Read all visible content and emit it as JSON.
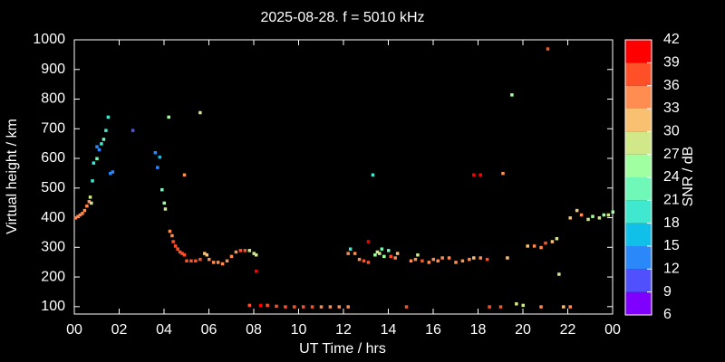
{
  "chart_data": {
    "type": "scatter",
    "title": "2025-08-28. f = 5010 kHz",
    "x_label": "UT Time / hrs",
    "y_label": "Virtual height / km",
    "xlim": [
      0,
      24
    ],
    "xticks": [
      {
        "value": 0,
        "label": "00"
      },
      {
        "value": 2,
        "label": "02"
      },
      {
        "value": 4,
        "label": "04"
      },
      {
        "value": 6,
        "label": "06"
      },
      {
        "value": 8,
        "label": "08"
      },
      10,
      12,
      14,
      16,
      18,
      20,
      22,
      {
        "value": 24,
        "label": "00"
      }
    ],
    "ylim": [
      75,
      1000
    ],
    "yticks": [
      100,
      200,
      300,
      400,
      500,
      600,
      700,
      800,
      900,
      1000
    ],
    "colorbar": {
      "label": "SNR / dB",
      "lim": [
        6,
        42
      ],
      "ticks": [
        6,
        9,
        12,
        15,
        18,
        21,
        24,
        27,
        30,
        33,
        36,
        39,
        42
      ],
      "colors": [
        "#8000ff",
        "#5050ff",
        "#2a88f8",
        "#10c0e8",
        "#40e8d0",
        "#70f8b8",
        "#a0ffa0",
        "#d0e888",
        "#f8c070",
        "#ff8c50",
        "#ff5028",
        "#ff0000"
      ]
    },
    "x": [
      0.05,
      0.15,
      0.25,
      0.35,
      0.45,
      0.55,
      0.65,
      0.7,
      0.75,
      0.8,
      0.85,
      1.0,
      1.0,
      1.1,
      1.2,
      1.3,
      1.4,
      1.5,
      1.6,
      1.7,
      2.6,
      3.6,
      3.8,
      3.7,
      3.9,
      4.0,
      4.05,
      4.2,
      4.9,
      5.6,
      4.25,
      4.35,
      4.4,
      4.5,
      4.6,
      4.7,
      4.8,
      4.9,
      5.0,
      5.2,
      5.4,
      5.6,
      5.8,
      5.9,
      6.0,
      6.2,
      6.4,
      6.6,
      6.8,
      7.0,
      7.2,
      7.4,
      7.6,
      7.8,
      8.0,
      8.1,
      8.1,
      7.8,
      8.3,
      8.6,
      9.0,
      9.4,
      9.8,
      10.2,
      10.6,
      11.0,
      11.4,
      11.8,
      12.2,
      12.2,
      12.3,
      12.5,
      12.7,
      12.9,
      13.1,
      13.1,
      13.3,
      13.4,
      13.5,
      13.6,
      13.7,
      13.8,
      14.0,
      14.1,
      14.3,
      14.4,
      14.8,
      15.0,
      15.2,
      15.3,
      15.5,
      15.8,
      16.0,
      16.2,
      16.4,
      16.7,
      17.0,
      17.3,
      17.6,
      17.8,
      18.1,
      18.4,
      17.8,
      18.1,
      18.5,
      19.0,
      19.1,
      19.3,
      19.5,
      19.7,
      20.0,
      20.2,
      20.5,
      20.8,
      21.0,
      21.3,
      21.5,
      21.1,
      21.6,
      20.8,
      21.8,
      22.1,
      22.1,
      22.4,
      22.6,
      22.9,
      23.1,
      23.4,
      23.6,
      23.8,
      24.0
    ],
    "values": [
      400,
      405,
      410,
      415,
      425,
      440,
      455,
      470,
      450,
      525,
      585,
      600,
      640,
      630,
      650,
      665,
      695,
      740,
      550,
      555,
      695,
      620,
      605,
      570,
      495,
      450,
      430,
      740,
      545,
      755,
      355,
      340,
      320,
      305,
      295,
      285,
      280,
      275,
      255,
      255,
      255,
      260,
      280,
      275,
      260,
      250,
      250,
      245,
      255,
      270,
      285,
      290,
      290,
      290,
      280,
      275,
      220,
      105,
      105,
      105,
      102,
      100,
      100,
      100,
      100,
      100,
      100,
      100,
      100,
      280,
      295,
      280,
      260,
      255,
      250,
      320,
      545,
      275,
      285,
      280,
      295,
      270,
      290,
      270,
      265,
      280,
      100,
      255,
      260,
      275,
      255,
      250,
      260,
      255,
      265,
      265,
      250,
      255,
      260,
      265,
      265,
      260,
      545,
      545,
      100,
      100,
      550,
      265,
      815,
      110,
      105,
      305,
      305,
      300,
      315,
      320,
      330,
      970,
      210,
      100,
      100,
      100,
      400,
      425,
      410,
      395,
      405,
      400,
      410,
      410,
      420
    ],
    "snr": [
      33,
      33,
      33,
      33,
      33,
      33,
      33,
      27,
      27,
      18,
      18,
      21,
      12,
      12,
      18,
      21,
      18,
      18,
      12,
      12,
      9,
      12,
      15,
      12,
      21,
      24,
      27,
      24,
      33,
      27,
      33,
      33,
      36,
      36,
      36,
      36,
      36,
      36,
      36,
      36,
      36,
      36,
      30,
      30,
      33,
      33,
      33,
      33,
      33,
      33,
      33,
      36,
      36,
      27,
      27,
      27,
      39,
      36,
      39,
      36,
      36,
      36,
      36,
      36,
      36,
      33,
      33,
      33,
      33,
      33,
      18,
      33,
      33,
      36,
      36,
      39,
      18,
      24,
      27,
      27,
      21,
      24,
      21,
      36,
      33,
      30,
      36,
      33,
      33,
      27,
      36,
      33,
      33,
      33,
      33,
      33,
      33,
      33,
      33,
      30,
      33,
      36,
      39,
      39,
      36,
      36,
      33,
      30,
      24,
      27,
      27,
      30,
      33,
      33,
      36,
      30,
      27,
      36,
      27,
      33,
      30,
      33,
      30,
      30,
      33,
      27,
      24,
      27,
      24,
      27,
      24
    ]
  }
}
